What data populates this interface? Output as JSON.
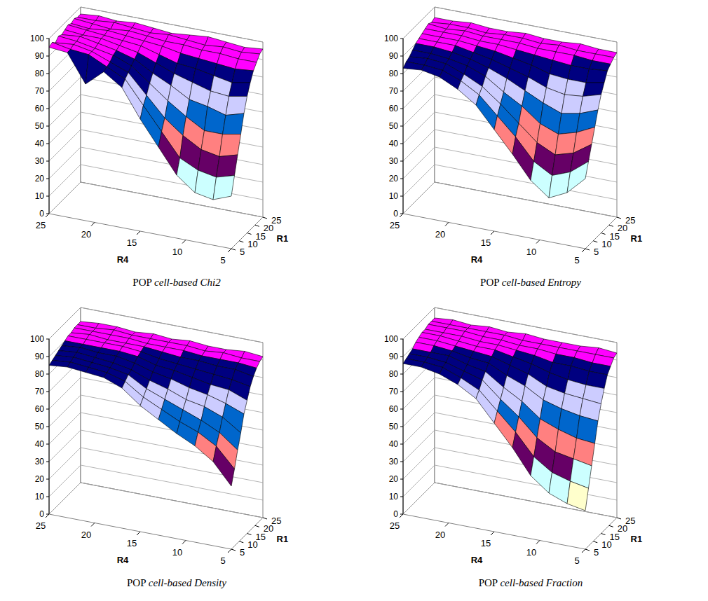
{
  "chart_data": [
    {
      "type": "surface",
      "title": "POP cell-based Chi2",
      "xlabel": "R4",
      "ylabel": "R1",
      "xlim": [
        25,
        5
      ],
      "xticks": [
        5,
        10,
        15,
        20,
        25
      ],
      "ylim": [
        5,
        25
      ],
      "yticks": [
        5,
        10,
        15,
        20,
        25
      ],
      "zlim": [
        0,
        100
      ],
      "zticks": [
        0,
        10,
        20,
        30,
        40,
        50,
        60,
        70,
        80,
        90,
        100
      ],
      "colors": [
        "#9999FF",
        "#993366",
        "#FFFFCC",
        "#CCFFFF",
        "#660066",
        "#FF8080",
        "#0066CC",
        "#CCCCFF",
        "#000080",
        "#FF00FF"
      ],
      "x": [
        5,
        7,
        9,
        11,
        13,
        15,
        17,
        19,
        21,
        23,
        25
      ],
      "y": [
        5,
        7,
        9,
        11,
        13,
        15,
        17,
        19,
        21,
        23,
        25
      ],
      "z": [
        [
          30,
          26,
          28,
          36,
          50,
          64,
          80,
          87,
          78,
          94,
          95
        ],
        [
          40,
          37,
          39,
          44,
          57,
          70,
          83,
          88,
          93,
          94,
          96
        ],
        [
          50,
          47,
          49,
          55,
          63,
          74,
          85,
          89,
          93,
          95,
          94
        ],
        [
          60,
          58,
          58,
          64,
          71,
          79,
          87,
          91,
          93,
          95,
          96
        ],
        [
          70,
          67,
          70,
          72,
          78,
          83,
          89,
          92,
          94,
          96,
          95
        ],
        [
          78,
          76,
          77,
          80,
          83,
          87,
          91,
          93,
          95,
          95,
          96
        ],
        [
          84,
          82,
          84,
          86,
          87,
          90,
          93,
          94,
          95,
          96,
          97
        ],
        [
          89,
          88,
          89,
          90,
          91,
          93,
          94,
          95,
          96,
          95,
          96
        ],
        [
          92,
          92,
          93,
          93,
          94,
          94,
          95,
          96,
          95,
          96,
          97
        ],
        [
          95,
          94,
          95,
          94,
          95,
          96,
          95,
          96,
          97,
          96,
          96
        ],
        [
          96,
          95,
          96,
          97,
          96,
          95,
          96,
          97,
          96,
          97,
          96
        ]
      ]
    },
    {
      "type": "surface",
      "title": "POP cell-based Entropy",
      "xlabel": "R4",
      "ylabel": "R1",
      "xlim": [
        25,
        5
      ],
      "xticks": [
        5,
        10,
        15,
        20,
        25
      ],
      "ylim": [
        5,
        25
      ],
      "yticks": [
        5,
        10,
        15,
        20,
        25
      ],
      "zlim": [
        0,
        100
      ],
      "zticks": [
        0,
        10,
        20,
        30,
        40,
        50,
        60,
        70,
        80,
        90,
        100
      ],
      "colors": [
        "#9999FF",
        "#993366",
        "#FFFFCC",
        "#CCFFFF",
        "#660066",
        "#FF8080",
        "#0066CC",
        "#CCCCFF",
        "#000080",
        "#FF00FF"
      ],
      "x": [
        5,
        7,
        9,
        11,
        13,
        15,
        17,
        19,
        21,
        23,
        25
      ],
      "y": [
        5,
        7,
        9,
        11,
        13,
        15,
        17,
        19,
        21,
        23,
        25
      ],
      "z": [
        [
          40,
          30,
          25,
          33,
          46,
          58,
          70,
          77,
          82,
          84,
          83
        ],
        [
          48,
          40,
          36,
          42,
          54,
          64,
          74,
          80,
          84,
          85,
          85
        ],
        [
          56,
          49,
          46,
          51,
          60,
          69,
          77,
          82,
          86,
          87,
          86
        ],
        [
          64,
          59,
          56,
          60,
          68,
          74,
          81,
          85,
          87,
          88,
          88
        ],
        [
          72,
          68,
          66,
          70,
          75,
          80,
          84,
          87,
          89,
          90,
          90
        ],
        [
          79,
          76,
          75,
          77,
          81,
          84,
          87,
          89,
          91,
          91,
          91
        ],
        [
          84,
          82,
          82,
          83,
          86,
          88,
          90,
          91,
          92,
          92,
          92
        ],
        [
          89,
          88,
          88,
          89,
          90,
          91,
          92,
          92,
          93,
          93,
          93
        ],
        [
          91,
          91,
          92,
          92,
          92,
          93,
          93,
          93,
          94,
          93,
          94
        ],
        [
          93,
          93,
          93,
          94,
          93,
          94,
          94,
          93,
          94,
          94,
          93
        ],
        [
          94,
          94,
          95,
          94,
          94,
          95,
          94,
          94,
          95,
          94,
          94
        ]
      ]
    },
    {
      "type": "surface",
      "title": "POP cell-based Density",
      "xlabel": "R4",
      "ylabel": "R1",
      "xlim": [
        25,
        5
      ],
      "xticks": [
        5,
        10,
        15,
        20,
        25
      ],
      "ylim": [
        5,
        25
      ],
      "yticks": [
        5,
        10,
        15,
        20,
        25
      ],
      "zlim": [
        0,
        100
      ],
      "zticks": [
        0,
        10,
        20,
        30,
        40,
        50,
        60,
        70,
        80,
        90,
        100
      ],
      "colors": [
        "#9999FF",
        "#993366",
        "#FFFFCC",
        "#CCFFFF",
        "#660066",
        "#FF8080",
        "#0066CC",
        "#CCCCFF",
        "#000080",
        "#FF00FF"
      ],
      "x": [
        5,
        7,
        9,
        11,
        13,
        15,
        17,
        19,
        21,
        23,
        25
      ],
      "y": [
        5,
        7,
        9,
        11,
        13,
        15,
        17,
        19,
        21,
        23,
        25
      ],
      "z": [
        [
          36,
          48,
          55,
          60,
          66,
          72,
          80,
          84,
          85,
          86,
          85
        ],
        [
          44,
          55,
          61,
          65,
          70,
          75,
          82,
          85,
          86,
          87,
          86
        ],
        [
          53,
          61,
          66,
          70,
          74,
          78,
          84,
          86,
          87,
          88,
          87
        ],
        [
          61,
          68,
          72,
          74,
          78,
          81,
          85,
          87,
          88,
          89,
          88
        ],
        [
          70,
          74,
          77,
          79,
          82,
          84,
          87,
          89,
          89,
          90,
          89
        ],
        [
          76,
          80,
          81,
          83,
          85,
          86,
          89,
          90,
          90,
          90,
          90
        ],
        [
          82,
          84,
          85,
          86,
          87,
          88,
          90,
          91,
          91,
          91,
          91
        ],
        [
          86,
          88,
          88,
          89,
          89,
          90,
          91,
          91,
          91,
          92,
          91
        ],
        [
          89,
          90,
          90,
          90,
          91,
          91,
          91,
          92,
          92,
          92,
          92
        ],
        [
          91,
          91,
          92,
          91,
          92,
          92,
          92,
          92,
          93,
          92,
          92
        ],
        [
          92,
          93,
          92,
          92,
          93,
          92,
          93,
          92,
          93,
          93,
          92
        ]
      ]
    },
    {
      "type": "surface",
      "title": "POP cell-based Fraction",
      "xlabel": "R4",
      "ylabel": "R1",
      "xlim": [
        25,
        5
      ],
      "xticks": [
        5,
        10,
        15,
        20,
        25
      ],
      "ylim": [
        5,
        25
      ],
      "yticks": [
        5,
        10,
        15,
        20,
        25
      ],
      "zlim": [
        0,
        100
      ],
      "zticks": [
        0,
        10,
        20,
        30,
        40,
        50,
        60,
        70,
        80,
        90,
        100
      ],
      "colors": [
        "#9999FF",
        "#993366",
        "#FFFFCC",
        "#CCFFFF",
        "#660066",
        "#FF8080",
        "#0066CC",
        "#CCCCFF",
        "#000080",
        "#FF00FF"
      ],
      "x": [
        5,
        7,
        9,
        11,
        13,
        15,
        17,
        19,
        21,
        23,
        25
      ],
      "y": [
        5,
        7,
        9,
        11,
        13,
        15,
        17,
        19,
        21,
        23,
        25
      ],
      "z": [
        [
          22,
          24,
          28,
          36,
          50,
          62,
          74,
          80,
          84,
          86,
          86
        ],
        [
          33,
          35,
          38,
          45,
          57,
          67,
          77,
          82,
          86,
          87,
          87
        ],
        [
          44,
          46,
          48,
          54,
          64,
          72,
          81,
          84,
          87,
          88,
          88
        ],
        [
          55,
          56,
          59,
          63,
          71,
          77,
          84,
          86,
          89,
          89,
          89
        ],
        [
          66,
          67,
          69,
          72,
          78,
          82,
          87,
          88,
          90,
          91,
          91
        ],
        [
          74,
          75,
          76,
          78,
          83,
          86,
          89,
          90,
          91,
          92,
          92
        ],
        [
          81,
          81,
          82,
          84,
          87,
          89,
          91,
          91,
          92,
          93,
          93
        ],
        [
          87,
          87,
          88,
          88,
          90,
          91,
          92,
          92,
          93,
          93,
          93
        ],
        [
          90,
          90,
          91,
          91,
          92,
          92,
          93,
          93,
          94,
          94,
          94
        ],
        [
          93,
          93,
          93,
          93,
          93,
          93,
          94,
          94,
          94,
          94,
          94
        ],
        [
          94,
          95,
          94,
          94,
          94,
          95,
          94,
          95,
          94,
          95,
          94
        ]
      ]
    }
  ]
}
